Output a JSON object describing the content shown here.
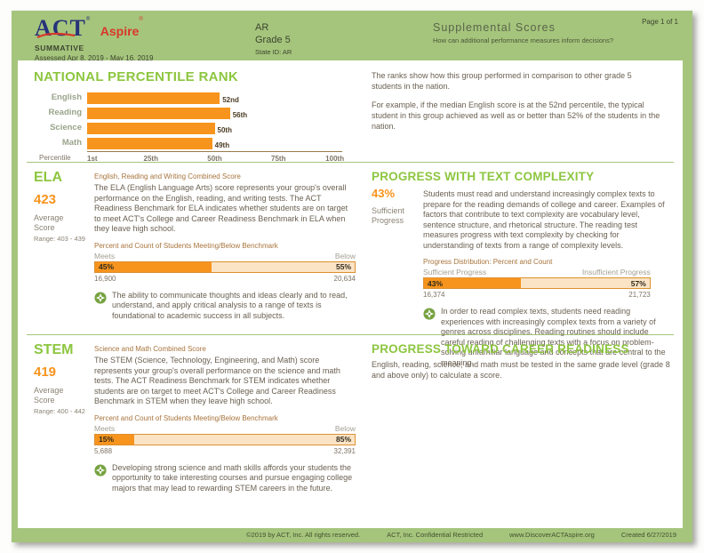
{
  "colors": {
    "page_green": "#a5c57c",
    "accent_green": "#8dc63f",
    "orange": "#f7941d",
    "light_orange": "#fbe4c5",
    "act_blue": "#26337b",
    "aspire_red": "#d9372a"
  },
  "header": {
    "logo_act": "ACT",
    "logo_reg": "®",
    "logo_aspire": "Aspire",
    "aspire_reg": "®",
    "program": "SUMMATIVE",
    "assessed": "Assessed Apr 8, 2019 - May 16, 2019",
    "org": "AR",
    "grade": "Grade 5",
    "state_id": "State ID: AR",
    "title": "Supplemental Scores",
    "subtitle": "How can additional performance measures inform decisions?",
    "page_number": "Page 1 of 1"
  },
  "npr": {
    "title": "NATIONAL PERCENTILE RANK",
    "axis_label": "Percentile",
    "para1": "The ranks show how this group performed in comparison to other grade 5 students in the nation.",
    "para2": "For example, if the median English score is at the 52nd percentile, the typical student in this group achieved as well as or better than 52% of the students in the nation."
  },
  "ela": {
    "code": "ELA",
    "score": "423",
    "score_label": "Average Score",
    "range": "Range: 403 - 439",
    "subheading": "English, Reading and Writing Combined Score",
    "body": "The ELA (English Language Arts) score represents your group's overall performance on the English, reading, and writing tests. The ACT Readiness Benchmark for ELA indicates whether students are on target to meet ACT's College and Career Readiness Benchmark in ELA when they leave high school.",
    "bar_title": "Percent and Count of Students Meeting/Below Benchmark",
    "note": "The ability to communicate thoughts and ideas clearly and to read, understand, and apply critical analysis to a range of texts is foundational to academic success in all subjects."
  },
  "text_complexity": {
    "title": "PROGRESS WITH TEXT COMPLEXITY",
    "score": "43%",
    "score_label": "Sufficient Progress",
    "body": "Students must read and understand increasingly complex texts to prepare for the reading demands of college and career. Examples of factors that contribute to text complexity are vocabulary level, sentence structure, and rhetorical structure. The reading test measures progress with text complexity by checking for understanding of texts from a range of complexity levels.",
    "bar_title": "Progress Distribution: Percent and Count",
    "note": "In order to read complex texts, students need reading experiences with increasingly complex texts from a variety of genres across disciplines. Reading routines should include careful reading of challenging texts with a focus on problem-solving unfamiliar language and concepts that are central to the meaning."
  },
  "stem": {
    "code": "STEM",
    "score": "419",
    "score_label": "Average Score",
    "range": "Range: 400 - 442",
    "subheading": "Science and Math Combined Score",
    "body": "The STEM (Science, Technology, Engineering, and Math) score represents your group's overall performance on the science and math tests. The ACT Readiness Benchmark for STEM indicates whether students are on target to meet ACT's College and Career Readiness Benchmark in STEM when they leave high school.",
    "bar_title": "Percent and Count of Students Meeting/Below Benchmark",
    "note": "Developing strong science and math skills affords your students the opportunity to take interesting courses and pursue engaging college majors that may lead to rewarding STEM careers in the future."
  },
  "career": {
    "title": "PROGRESS TOWARD CAREER READINESS",
    "body": "English, reading, science, and math must be tested in the same grade level (grade 8 and above only) to calculate a score."
  },
  "footer": {
    "copyright": "©2019 by ACT, Inc. All rights reserved.",
    "confidential": "ACT, Inc. Confidential Restricted",
    "website": "www.DiscoverACTAspire.org",
    "created": "Created 6/27/2019"
  },
  "chart_data": [
    {
      "type": "bar",
      "orientation": "horizontal",
      "title": "NATIONAL PERCENTILE RANK",
      "categories": [
        "English",
        "Reading",
        "Science",
        "Math"
      ],
      "values": [
        52,
        56,
        50,
        49
      ],
      "value_labels": [
        "52nd",
        "56th",
        "50th",
        "49th"
      ],
      "xlabel": "Percentile",
      "x_ticks": [
        "1st",
        "25th",
        "50th",
        "75th",
        "100th"
      ],
      "xlim": [
        1,
        100
      ],
      "bar_color": "#f7941d",
      "grid": false,
      "legend": false
    },
    {
      "type": "bar",
      "title": "ELA — Percent and Count of Students Meeting/Below Benchmark",
      "categories": [
        "Meets",
        "Below"
      ],
      "values": [
        45,
        55
      ],
      "percent_labels": [
        "45%",
        "55%"
      ],
      "count_labels": [
        "16,900",
        "20,634"
      ]
    },
    {
      "type": "bar",
      "title": "Progress with Text Complexity — Progress Distribution: Percent and Count",
      "categories": [
        "Sufficient Progress",
        "Insufficient Progress"
      ],
      "values": [
        43,
        57
      ],
      "percent_labels": [
        "43%",
        "57%"
      ],
      "count_labels": [
        "16,374",
        "21,723"
      ]
    },
    {
      "type": "bar",
      "title": "STEM — Percent and Count of Students Meeting/Below Benchmark",
      "categories": [
        "Meets",
        "Below"
      ],
      "values": [
        15,
        85
      ],
      "percent_labels": [
        "15%",
        "85%"
      ],
      "count_labels": [
        "5,688",
        "32,391"
      ]
    }
  ]
}
